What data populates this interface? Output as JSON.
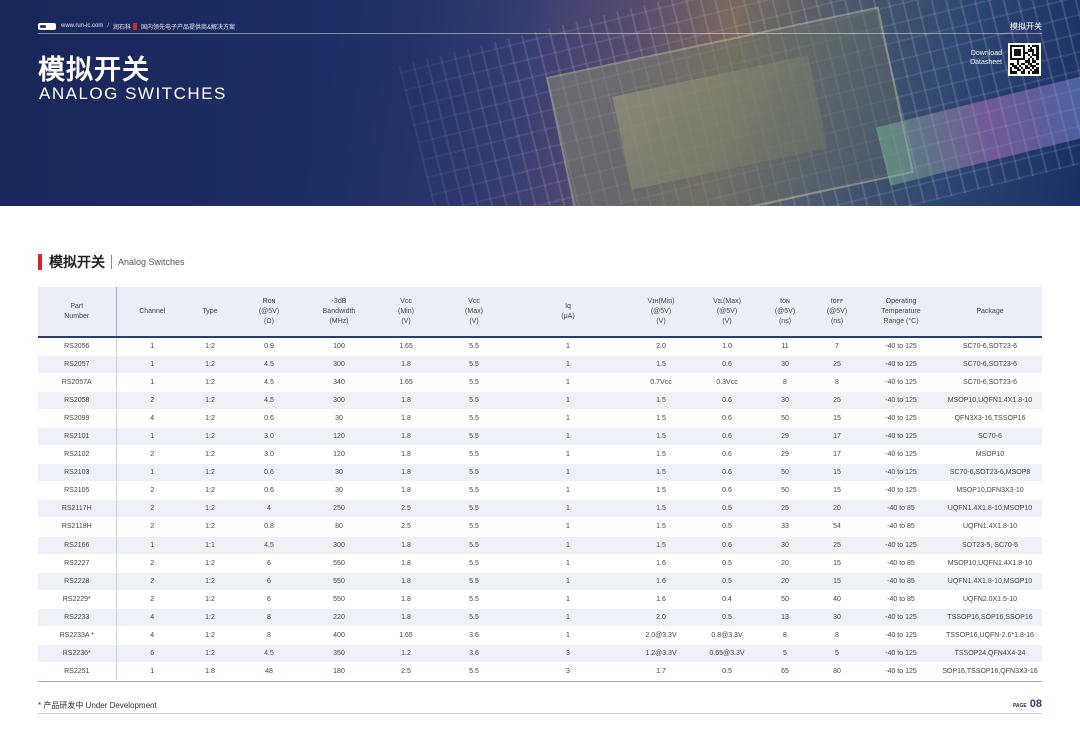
{
  "header": {
    "site": "www.run-ic.com",
    "slash": "/",
    "brand_cn": "润石科",
    "tagline": "国内领先电子产品提供商&解决方案",
    "page_tag": "模拟开关"
  },
  "hero": {
    "title_cn": "模拟开关",
    "title_en": "ANALOG SWITCHES",
    "download_line1": "Download",
    "download_line2": "Datasheet"
  },
  "section": {
    "title_cn": "模拟开关",
    "title_en": "Analog Switches"
  },
  "table": {
    "headers": [
      [
        "Part",
        "Number"
      ],
      [
        "Channel"
      ],
      [
        "Type"
      ],
      [
        "Rᴏɴ",
        "(@5V)",
        "(Ω)"
      ],
      [
        "-3dB",
        "Bandwidth",
        "(MHz)"
      ],
      [
        "Vcc",
        "(Min)",
        "(V)"
      ],
      [
        "Vcc",
        "(Max)",
        "(V)"
      ],
      [
        "Iq",
        "(μA)"
      ],
      [
        "Vɪʜ(Min)",
        "(@5V)",
        "(V)"
      ],
      [
        "Vɪʟ(Max)",
        "(@5V)",
        "(V)"
      ],
      [
        "tᴏɴ",
        "(@5V)",
        "(ns)"
      ],
      [
        "tᴏꜰꜰ",
        "(@5V)",
        "(ns)"
      ],
      [
        "Operating",
        "Temperature",
        "Range (°C)"
      ],
      [
        "Package"
      ]
    ],
    "rows": [
      [
        "RS2056",
        "1",
        "1:2",
        "0.9",
        "100",
        "1.65",
        "5.5",
        "1",
        "2.0",
        "1.0",
        "11",
        "7",
        "-40 to 125",
        "SC70-6,SOT23-6"
      ],
      [
        "RS2057",
        "1",
        "1:2",
        "4.5",
        "300",
        "1.8",
        "5.5",
        "1",
        "1.5",
        "0.6",
        "30",
        "25",
        "-40 to 125",
        "SC70-6,SOT23-6"
      ],
      [
        "RS2057A",
        "1",
        "1:2",
        "4.5",
        "340",
        "1.65",
        "5.5",
        "1",
        "0.7Vcc",
        "0.3Vcc",
        "8",
        "8",
        "-40 to 125",
        "SC70-6,SOT23-6"
      ],
      [
        "RS2058",
        "2",
        "1:2",
        "4.5",
        "300",
        "1.8",
        "5.5",
        "1",
        "1.5",
        "0.6",
        "30",
        "25",
        "-40 to 125",
        "MSOP10,UQFN1.4X1.8-10"
      ],
      [
        "RS2099",
        "4",
        "1:2",
        "0.6",
        "30",
        "1.8",
        "5.5",
        "1",
        "1.5",
        "0.6",
        "50",
        "15",
        "-40 to 125",
        "QFN3X3-16,TSSOP16"
      ],
      [
        "RS2101",
        "1",
        "1:2",
        "3.0",
        "120",
        "1.8",
        "5.5",
        "1",
        "1.5",
        "0.6",
        "29",
        "17",
        "-40 to 125",
        "SC70-6"
      ],
      [
        "RS2102",
        "2",
        "1:2",
        "3.0",
        "120",
        "1.8",
        "5.5",
        "1",
        "1.5",
        "0.6",
        "29",
        "17",
        "-40 to 125",
        "MSOP10"
      ],
      [
        "RS2103",
        "1",
        "1:2",
        "0.6",
        "30",
        "1.8",
        "5.5",
        "1",
        "1.5",
        "0.6",
        "50",
        "15",
        "-40 to 125",
        "SC70-6,SOT23-6,MSOP8"
      ],
      [
        "RS2105",
        "2",
        "1:2",
        "0.6",
        "30",
        "1.8",
        "5.5",
        "1",
        "1.5",
        "0.6",
        "50",
        "15",
        "-40 to 125",
        "MSOP10,DFN3X3-10"
      ],
      [
        "RS2117H",
        "2",
        "1:2",
        "4",
        "250",
        "2.5",
        "5.5",
        "1",
        "1.5",
        "0.5",
        "25",
        "20",
        "-40 to 85",
        "UQFN1.4X1.8-10,MSOP10"
      ],
      [
        "RS2118H",
        "2",
        "1:2",
        "0.8",
        "80",
        "2.5",
        "5.5",
        "1",
        "1.5",
        "0.5",
        "33",
        "54",
        "-40 to 85",
        "UQFN1.4X1.8-10"
      ],
      [
        "RS2166",
        "1",
        "1:1",
        "4.5",
        "300",
        "1.8",
        "5.5",
        "1",
        "1.5",
        "0.6",
        "30",
        "25",
        "-40 to 125",
        "SOT23-5, SC70-5"
      ],
      [
        "RS2227",
        "2",
        "1:2",
        "6",
        "550",
        "1.8",
        "5.5",
        "1",
        "1.6",
        "0.5",
        "20",
        "15",
        "-40 to 85",
        "MSOP10,UQFN1.4X1.8-10"
      ],
      [
        "RS2228",
        "2",
        "1:2",
        "6",
        "550",
        "1.8",
        "5.5",
        "1",
        "1.6",
        "0.5",
        "20",
        "15",
        "-40 to 85",
        "UQFN1.4X1.8-10,MSOP10"
      ],
      [
        "RS2229*",
        "2",
        "1:2",
        "6",
        "550",
        "1.8",
        "5.5",
        "1",
        "1.6",
        "0.4",
        "50",
        "40",
        "-40 to 85",
        "UQFN2.0X1.5-10"
      ],
      [
        "RS2233",
        "4",
        "1:2",
        "8",
        "220",
        "1.8",
        "5.5",
        "1",
        "2.0",
        "0.5",
        "13",
        "30",
        "-40 to 125",
        "TSSOP16,SOP16,SSOP16"
      ],
      [
        "RS2233A *",
        "4",
        "1:2",
        "8",
        "400",
        "1.65",
        "3.6",
        "1",
        "2.0@3.3V",
        "0.8@3.3V",
        "8",
        "8",
        "-40 to 125",
        "TSSOP16,UQFN-2.6*1.8-16"
      ],
      [
        "RS2236*",
        "6",
        "1:2",
        "4.5",
        "350",
        "1.2",
        "3.6",
        "3",
        "1.2@3.3V",
        "0.65@3.3V",
        "5",
        "5",
        "-40 to 125",
        "TSSOP24,QFN4X4-24"
      ],
      [
        "RS2251",
        "1",
        "1:8",
        "48",
        "180",
        "2.5",
        "5.5",
        "3",
        "1.7",
        "0.5",
        "65",
        "80",
        "-40 to 125",
        "SOP16,TSSOP16,QFN3X3-16"
      ]
    ]
  },
  "footer": {
    "note": "* 产品研发中 Under Development",
    "page_label": "PAGE",
    "page_number": "08"
  }
}
